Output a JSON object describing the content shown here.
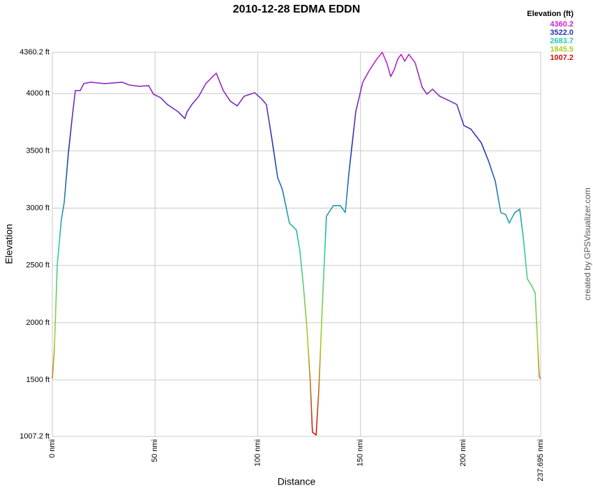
{
  "chart_data": {
    "type": "line",
    "title": "2010-12-28 EDMA EDDN",
    "x_label": "Distance",
    "y_label": "Elevation",
    "credit": "created by GPSVisualizer.com",
    "legend": {
      "title": "Elevation (ft)",
      "values": [
        {
          "value": 4360.2,
          "label": "4360.2"
        },
        {
          "value": 3522,
          "label": "3522.0"
        },
        {
          "value": 2683.7,
          "label": "2683.7"
        },
        {
          "value": 1845.5,
          "label": "1845.5"
        },
        {
          "value": 1007.2,
          "label": "1007.2"
        }
      ],
      "colors": [
        "#cc22cc",
        "#2233aa",
        "#22ccaa",
        "#aacc22",
        "#cc1111"
      ]
    },
    "xlim": [
      0,
      237.695
    ],
    "ylim": [
      1007.2,
      4360.2
    ],
    "xticks": [
      {
        "value": 0,
        "label": "0 nmi"
      },
      {
        "value": 50,
        "label": "50 nmi"
      },
      {
        "value": 100,
        "label": "100 nmi"
      },
      {
        "value": 150,
        "label": "150 nmi"
      },
      {
        "value": 200,
        "label": "200 nmi"
      },
      {
        "value": 237.695,
        "label": "237.695 nmi"
      }
    ],
    "yticks": [
      {
        "value": 1007.2,
        "label": "1007.2 ft"
      },
      {
        "value": 1500,
        "label": "1500 ft"
      },
      {
        "value": 2000,
        "label": "2000 ft"
      },
      {
        "value": 2500,
        "label": "2500 ft"
      },
      {
        "value": 3000,
        "label": "3000 ft"
      },
      {
        "value": 3500,
        "label": "3500 ft"
      },
      {
        "value": 4000,
        "label": "4000 ft"
      },
      {
        "value": 4360.2,
        "label": "4360.2 ft"
      }
    ],
    "grid": true,
    "x": [
      0,
      1.0,
      2.4,
      4.4,
      5.8,
      7.8,
      9.8,
      11.2,
      13.6,
      15.3,
      18.7,
      25.5,
      34.0,
      37.4,
      42.4,
      46.9,
      49.2,
      52.6,
      56.0,
      61.1,
      64.5,
      65.5,
      67.9,
      71.3,
      74.7,
      78.1,
      79.8,
      83.2,
      86.6,
      90.0,
      93.4,
      98.5,
      101.9,
      104.2,
      106.9,
      109.7,
      112.0,
      115.4,
      118.8,
      120.5,
      122.2,
      123.9,
      125.6,
      126.6,
      128.4,
      129.7,
      131.4,
      133.4,
      136.8,
      140.2,
      142.6,
      144.3,
      147.7,
      151.1,
      154.5,
      157.9,
      160.6,
      163.0,
      164.7,
      166.4,
      168.1,
      169.8,
      171.5,
      173.5,
      176.6,
      180.0,
      182.3,
      185.1,
      188.5,
      193.6,
      196.9,
      200.3,
      203.7,
      208.8,
      212.2,
      215.6,
      218.3,
      220.7,
      222.4,
      225.1,
      227.5,
      229.2,
      231.2,
      233.3,
      235.0,
      236.0,
      237.0,
      237.695
    ],
    "values": [
      1510,
      1774,
      2504,
      2900,
      3052,
      3478,
      3813,
      4026,
      4026,
      4087,
      4099,
      4087,
      4099,
      4075,
      4063,
      4069,
      3995,
      3965,
      3904,
      3843,
      3782,
      3837,
      3904,
      3977,
      4087,
      4148,
      4178,
      4026,
      3934,
      3892,
      3977,
      4007,
      3953,
      3904,
      3600,
      3265,
      3162,
      2870,
      2808,
      2626,
      2322,
      1957,
      1470,
      1044,
      1019,
      1409,
      2139,
      2930,
      3022,
      3022,
      2961,
      3296,
      3843,
      4099,
      4208,
      4300,
      4360,
      4257,
      4148,
      4208,
      4300,
      4342,
      4282,
      4342,
      4269,
      4056,
      3995,
      4038,
      3977,
      3934,
      3904,
      3721,
      3690,
      3569,
      3417,
      3235,
      2961,
      2943,
      2870,
      2961,
      2991,
      2748,
      2382,
      2322,
      2261,
      1896,
      1530,
      1510
    ]
  }
}
